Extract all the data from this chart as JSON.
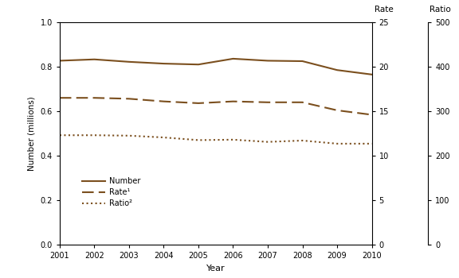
{
  "years": [
    2001,
    2002,
    2003,
    2004,
    2005,
    2006,
    2007,
    2008,
    2009,
    2010
  ],
  "number": [
    0.827,
    0.833,
    0.822,
    0.814,
    0.81,
    0.836,
    0.827,
    0.825,
    0.785,
    0.765
  ],
  "rate": [
    16.5,
    16.5,
    16.4,
    16.1,
    15.9,
    16.1,
    16.0,
    16.0,
    15.1,
    14.6
  ],
  "ratio": [
    246,
    246,
    245,
    241,
    235,
    236,
    231,
    234,
    227,
    227
  ],
  "line_color": "#7B4F1E",
  "bg_color": "#ffffff",
  "ylabel_left": "Number (millions)",
  "xlabel": "Year",
  "ylim_left": [
    0.0,
    1.0
  ],
  "ylim_rate": [
    0,
    25
  ],
  "ylim_ratio": [
    0,
    500
  ],
  "yticks_left": [
    0.0,
    0.2,
    0.4,
    0.6,
    0.8,
    1.0
  ],
  "yticks_rate": [
    0,
    5,
    10,
    15,
    20,
    25
  ],
  "yticks_ratio": [
    0,
    100,
    200,
    300,
    400,
    500
  ],
  "legend_number": "Number",
  "legend_rate": "Rate¹",
  "legend_ratio": "Ratio²",
  "rate_label": "Rate",
  "ratio_label": "Ratio"
}
